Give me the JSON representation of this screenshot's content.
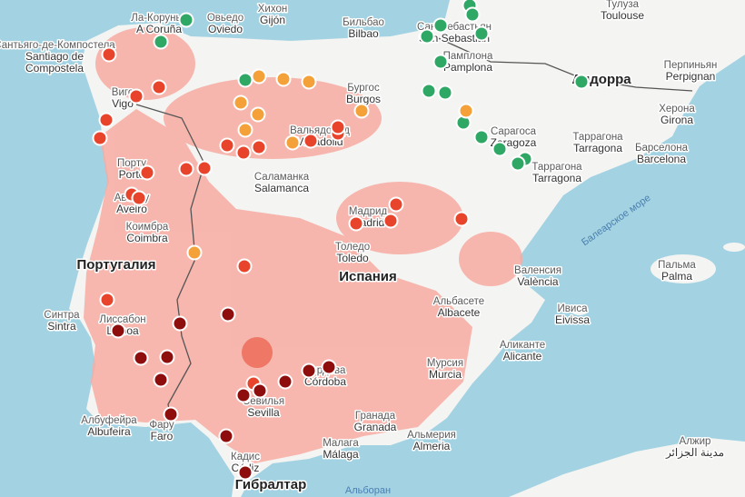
{
  "places": [
    {
      "lines": [
        "Ла-Корунья",
        "A Coruña"
      ]
    },
    {
      "lines": [
        "Овьедо",
        "Oviedo"
      ]
    },
    {
      "lines": [
        "Хихон",
        "Gijón"
      ]
    },
    {
      "lines": [
        "Сантьяго-де-Компостела",
        "Santiago de",
        "Compostela"
      ]
    },
    {
      "lines": [
        "Виго",
        "Vigo"
      ]
    },
    {
      "lines": [
        "Порту",
        "Porto"
      ]
    },
    {
      "lines": [
        "Авейру",
        "Aveiro"
      ]
    },
    {
      "lines": [
        "Коимбра",
        "Coimbra"
      ]
    },
    {
      "lines": [
        "Синтра",
        "Sintra"
      ]
    },
    {
      "lines": [
        "Лиссабон",
        "Lisboa"
      ]
    },
    {
      "lines": [
        "Албуфейра",
        "Albufeira"
      ]
    },
    {
      "lines": [
        "Фару",
        "Faro"
      ]
    },
    {
      "lines": [
        "Бильбао",
        "Bilbao"
      ]
    },
    {
      "lines": [
        "Сан-Себастьян",
        "San Sebastián"
      ]
    },
    {
      "lines": [
        "Памплона",
        "Pamplona"
      ]
    },
    {
      "lines": [
        "Тулуза",
        "Toulouse"
      ]
    },
    {
      "lines": [
        "Перпиньян",
        "Perpignan"
      ]
    },
    {
      "lines": [
        "Бургос",
        "Burgos"
      ]
    },
    {
      "lines": [
        "Вальядолид",
        "Valladolid"
      ]
    },
    {
      "lines": [
        "Саламанка",
        "Salamanca"
      ]
    },
    {
      "lines": [
        "Сарагоса",
        "Zaragoza"
      ]
    },
    {
      "lines": [
        "Херона",
        "Girona"
      ]
    },
    {
      "lines": [
        "Таррагона",
        "Tarragona"
      ]
    },
    {
      "lines": [
        "Барселона",
        "Barcelona"
      ]
    },
    {
      "lines": [
        "Таррагона",
        "Tarragona"
      ]
    },
    {
      "lines": [
        "Мадрид",
        "Madrid"
      ]
    },
    {
      "lines": [
        "Толедо",
        "Toledo"
      ]
    },
    {
      "lines": [
        "Валенсия",
        "València"
      ]
    },
    {
      "lines": [
        "Пальма",
        "Palma"
      ]
    },
    {
      "lines": [
        "Ивиса",
        "Eivissa"
      ]
    },
    {
      "lines": [
        "Альбасете",
        "Albacete"
      ]
    },
    {
      "lines": [
        "Аликанте",
        "Alicante"
      ]
    },
    {
      "lines": [
        "Мурсия",
        "Murcia"
      ]
    },
    {
      "lines": [
        "Кордова",
        "Córdoba"
      ]
    },
    {
      "lines": [
        "Севилья",
        "Sevilla"
      ]
    },
    {
      "lines": [
        "Гранада",
        "Granada"
      ]
    },
    {
      "lines": [
        "Малага",
        "Málaga"
      ]
    },
    {
      "lines": [
        "Альмерия",
        "Almeria"
      ]
    },
    {
      "lines": [
        "Кадис",
        "Cádiz"
      ]
    },
    {
      "lines": [
        "Алжир",
        "مدينة الجزائر"
      ]
    }
  ],
  "regions": [
    "Португалия",
    "Испания",
    "Андорра",
    "Гибралтар"
  ],
  "seas": [
    "Балеарское море",
    "Альборан"
  ]
}
